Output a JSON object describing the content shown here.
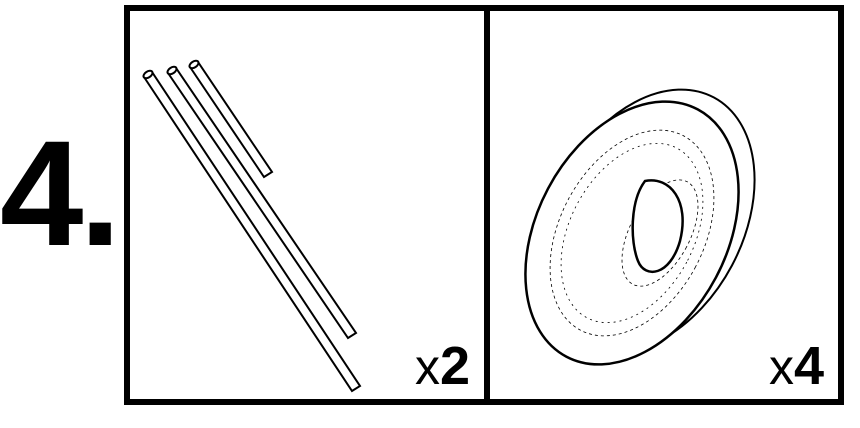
{
  "step": {
    "number": "4."
  },
  "panels": [
    {
      "name": "rods",
      "quantity_prefix": "x",
      "quantity_value": "2",
      "icon": "rods-icon"
    },
    {
      "name": "tire",
      "quantity_prefix": "x",
      "quantity_value": "4",
      "icon": "tire-icon"
    }
  ]
}
